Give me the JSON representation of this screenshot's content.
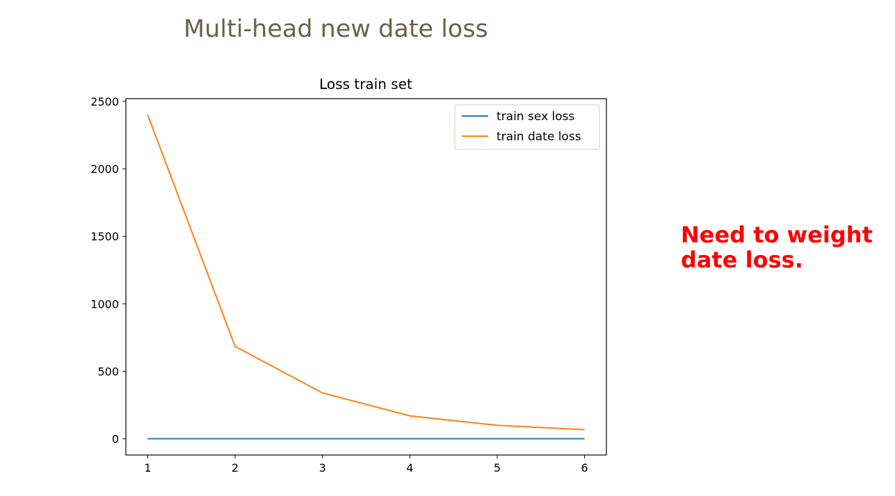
{
  "slide": {
    "title": "Multi-head new date loss",
    "note_lines": [
      "Need to weight",
      "date loss."
    ]
  },
  "colors": {
    "title": "#6b6247",
    "note": "#ff0000",
    "series": [
      "#1f77b4",
      "#ff7f0e"
    ]
  },
  "chart_data": {
    "type": "line",
    "title": "Loss train set",
    "xlabel": "",
    "ylabel": "",
    "x": [
      1,
      2,
      3,
      4,
      5,
      6
    ],
    "xticks": [
      "1",
      "2",
      "3",
      "4",
      "5",
      "6"
    ],
    "yticks": [
      "0",
      "500",
      "1000",
      "1500",
      "2000",
      "2500"
    ],
    "xlim": [
      0.75,
      6.25
    ],
    "ylim": [
      -120,
      2520
    ],
    "grid": false,
    "legend_position": "top-right",
    "series": [
      {
        "name": "train sex loss",
        "color": "#1f77b4",
        "values": [
          0.7,
          0.7,
          0.7,
          0.7,
          0.7,
          0.7
        ]
      },
      {
        "name": "train date loss",
        "color": "#ff7f0e",
        "values": [
          2400,
          685,
          340,
          170,
          100,
          68
        ]
      }
    ]
  }
}
